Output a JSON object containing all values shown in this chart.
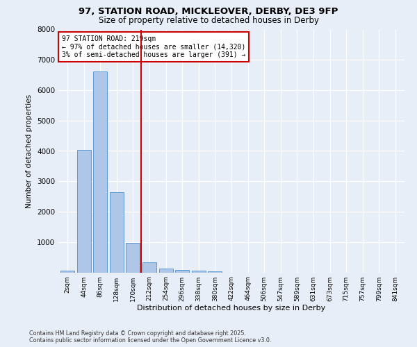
{
  "title_line1": "97, STATION ROAD, MICKLEOVER, DERBY, DE3 9FP",
  "title_line2": "Size of property relative to detached houses in Derby",
  "xlabel": "Distribution of detached houses by size in Derby",
  "ylabel": "Number of detached properties",
  "bar_labels": [
    "2sqm",
    "44sqm",
    "86sqm",
    "128sqm",
    "170sqm",
    "212sqm",
    "254sqm",
    "296sqm",
    "338sqm",
    "380sqm",
    "422sqm",
    "464sqm",
    "506sqm",
    "547sqm",
    "589sqm",
    "631sqm",
    "673sqm",
    "715sqm",
    "757sqm",
    "799sqm",
    "841sqm"
  ],
  "bar_values": [
    50,
    4030,
    6620,
    2640,
    970,
    340,
    120,
    70,
    50,
    30,
    0,
    0,
    0,
    0,
    0,
    0,
    0,
    0,
    0,
    0,
    0
  ],
  "bar_color": "#aec6e8",
  "bar_edgecolor": "#5b9bd5",
  "vline_color": "#cc0000",
  "annotation_title": "97 STATION ROAD: 219sqm",
  "annotation_line2": "← 97% of detached houses are smaller (14,320)",
  "annotation_line3": "3% of semi-detached houses are larger (391) →",
  "annotation_box_color": "#cc0000",
  "ylim": [
    0,
    8000
  ],
  "yticks": [
    0,
    1000,
    2000,
    3000,
    4000,
    5000,
    6000,
    7000,
    8000
  ],
  "footer_line1": "Contains HM Land Registry data © Crown copyright and database right 2025.",
  "footer_line2": "Contains public sector information licensed under the Open Government Licence v3.0.",
  "bg_color": "#e8eef7",
  "plot_bg_color": "#e8eef7",
  "grid_color": "#ffffff",
  "vline_index": 5
}
